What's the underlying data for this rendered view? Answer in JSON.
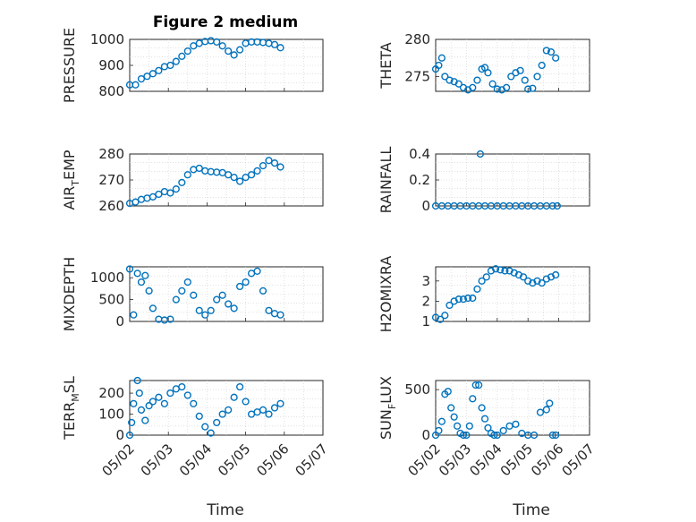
{
  "figure": {
    "title": "Figure 2 medium",
    "xlabel": "Time",
    "marker_color": "#0072bd"
  },
  "chart_data": [
    {
      "type": "scatter",
      "ylabel": "PRESSURE",
      "x_ticks": [
        "05/02",
        "05/03",
        "05/04",
        "05/05",
        "05/06",
        "05/07"
      ],
      "xlim": [
        0,
        5
      ],
      "ylim": [
        800,
        1000
      ],
      "yticks": [
        800,
        900,
        1000
      ],
      "grid": true,
      "series": [
        {
          "x": [
            0,
            0.15,
            0.3,
            0.45,
            0.6,
            0.75,
            0.9,
            1.05,
            1.2,
            1.35,
            1.5,
            1.65,
            1.8,
            1.95,
            2.1,
            2.25,
            2.4,
            2.55,
            2.7,
            2.85,
            3.0,
            3.15,
            3.3,
            3.45,
            3.6,
            3.75,
            3.9
          ],
          "y": [
            825,
            825,
            848,
            858,
            868,
            880,
            895,
            900,
            915,
            935,
            955,
            975,
            985,
            992,
            995,
            990,
            975,
            955,
            940,
            960,
            985,
            990,
            990,
            988,
            985,
            980,
            968
          ]
        }
      ]
    },
    {
      "type": "scatter",
      "ylabel": "THETA",
      "x_ticks": [
        "05/02",
        "05/03",
        "05/04",
        "05/05",
        "05/06",
        "05/07"
      ],
      "xlim": [
        0,
        5
      ],
      "ylim": [
        273,
        280
      ],
      "yticks": [
        275,
        280
      ],
      "grid": true,
      "series": [
        {
          "x": [
            0,
            0.1,
            0.2,
            0.3,
            0.45,
            0.6,
            0.75,
            0.9,
            1.05,
            1.2,
            1.35,
            1.5,
            1.6,
            1.7,
            1.85,
            2.0,
            2.15,
            2.3,
            2.45,
            2.6,
            2.75,
            2.9,
            3.0,
            3.15,
            3.3,
            3.45,
            3.6,
            3.75,
            3.9
          ],
          "y": [
            276,
            276.5,
            277.5,
            275,
            274.5,
            274.3,
            274,
            273.5,
            273.2,
            273.5,
            274.5,
            276,
            276.2,
            275.5,
            274,
            273.3,
            273.2,
            273.5,
            275,
            275.5,
            275.8,
            274.5,
            273.3,
            273.4,
            275,
            276.5,
            278.5,
            278.3,
            277.5
          ]
        }
      ]
    },
    {
      "type": "scatter",
      "ylabel": "AIR_TEMP",
      "x_ticks": [
        "05/02",
        "05/03",
        "05/04",
        "05/05",
        "05/06",
        "05/07"
      ],
      "xlim": [
        0,
        5
      ],
      "ylim": [
        260,
        280
      ],
      "yticks": [
        260,
        270,
        280
      ],
      "grid": true,
      "series": [
        {
          "x": [
            0,
            0.15,
            0.3,
            0.45,
            0.6,
            0.75,
            0.9,
            1.05,
            1.2,
            1.35,
            1.5,
            1.65,
            1.8,
            1.95,
            2.1,
            2.25,
            2.4,
            2.55,
            2.7,
            2.85,
            3.0,
            3.15,
            3.3,
            3.45,
            3.6,
            3.75,
            3.9
          ],
          "y": [
            261,
            261.5,
            262.5,
            263,
            263.5,
            264.5,
            265.5,
            265,
            266.5,
            269,
            272,
            274,
            274.5,
            273.5,
            273.2,
            273,
            272.8,
            272,
            271,
            269.5,
            271,
            272,
            273.5,
            275.5,
            277.5,
            276.5,
            275
          ]
        }
      ]
    },
    {
      "type": "scatter",
      "ylabel": "RAINFALL",
      "x_ticks": [
        "05/02",
        "05/03",
        "05/04",
        "05/05",
        "05/06",
        "05/07"
      ],
      "xlim": [
        0,
        5
      ],
      "ylim": [
        0,
        0.4
      ],
      "yticks": [
        0,
        0.2,
        0.4
      ],
      "grid": true,
      "series": [
        {
          "x": [
            0,
            0.2,
            0.4,
            0.6,
            0.8,
            1.0,
            1.2,
            1.4,
            1.6,
            1.8,
            2.0,
            2.2,
            2.4,
            2.6,
            2.8,
            3.0,
            3.2,
            3.4,
            3.6,
            3.8,
            3.95,
            1.45
          ],
          "y": [
            0,
            0,
            0,
            0,
            0,
            0,
            0,
            0,
            0,
            0,
            0,
            0,
            0,
            0,
            0,
            0,
            0,
            0,
            0,
            0,
            0,
            0.4
          ]
        }
      ]
    },
    {
      "type": "scatter",
      "ylabel": "MIXDEPTH",
      "x_ticks": [
        "05/02",
        "05/03",
        "05/04",
        "05/05",
        "05/06",
        "05/07"
      ],
      "xlim": [
        0,
        5
      ],
      "ylim": [
        0,
        1250
      ],
      "yticks": [
        0,
        500,
        1000
      ],
      "grid": true,
      "series": [
        {
          "x": [
            0,
            0.1,
            0.2,
            0.3,
            0.4,
            0.5,
            0.6,
            0.75,
            0.9,
            1.05,
            1.2,
            1.35,
            1.5,
            1.65,
            1.8,
            1.95,
            2.1,
            2.25,
            2.4,
            2.55,
            2.7,
            2.85,
            3.0,
            3.15,
            3.3,
            3.45,
            3.6,
            3.75,
            3.9
          ],
          "y": [
            1200,
            150,
            1100,
            900,
            1050,
            700,
            300,
            50,
            30,
            50,
            500,
            700,
            900,
            600,
            250,
            150,
            250,
            500,
            600,
            400,
            300,
            800,
            900,
            1100,
            1150,
            700,
            250,
            180,
            150
          ]
        }
      ]
    },
    {
      "type": "scatter",
      "ylabel": "H2OMIXRA",
      "x_ticks": [
        "05/02",
        "05/03",
        "05/04",
        "05/05",
        "05/06",
        "05/07"
      ],
      "xlim": [
        0,
        5
      ],
      "ylim": [
        1,
        3.7
      ],
      "yticks": [
        1,
        2,
        3
      ],
      "grid": true,
      "series": [
        {
          "x": [
            0,
            0.15,
            0.3,
            0.45,
            0.6,
            0.75,
            0.9,
            1.05,
            1.2,
            1.35,
            1.5,
            1.65,
            1.8,
            1.95,
            2.1,
            2.25,
            2.4,
            2.55,
            2.7,
            2.85,
            3.0,
            3.15,
            3.3,
            3.45,
            3.6,
            3.75,
            3.9
          ],
          "y": [
            1.2,
            1.1,
            1.3,
            1.8,
            2.0,
            2.1,
            2.1,
            2.15,
            2.15,
            2.6,
            3.0,
            3.2,
            3.5,
            3.6,
            3.55,
            3.5,
            3.5,
            3.4,
            3.3,
            3.2,
            3.0,
            2.9,
            3.0,
            2.9,
            3.1,
            3.2,
            3.3
          ]
        }
      ]
    },
    {
      "type": "scatter",
      "ylabel": "TERR_MSL",
      "x_ticks": [
        "05/02",
        "05/03",
        "05/04",
        "05/05",
        "05/06",
        "05/07"
      ],
      "xlim": [
        0,
        5
      ],
      "ylim": [
        0,
        260
      ],
      "yticks": [
        0,
        100,
        200
      ],
      "grid": true,
      "series": [
        {
          "x": [
            0,
            0.05,
            0.1,
            0.2,
            0.25,
            0.3,
            0.4,
            0.5,
            0.6,
            0.75,
            0.9,
            1.05,
            1.2,
            1.35,
            1.5,
            1.65,
            1.8,
            1.95,
            2.1,
            2.25,
            2.4,
            2.55,
            2.7,
            2.85,
            3.0,
            3.15,
            3.3,
            3.45,
            3.6,
            3.75,
            3.9
          ],
          "y": [
            0,
            60,
            150,
            260,
            200,
            120,
            70,
            140,
            160,
            180,
            150,
            200,
            220,
            230,
            190,
            150,
            90,
            40,
            10,
            60,
            100,
            120,
            180,
            230,
            160,
            100,
            110,
            120,
            100,
            130,
            150
          ]
        }
      ]
    },
    {
      "type": "scatter",
      "ylabel": "SUN_FLUX",
      "x_ticks": [
        "05/02",
        "05/03",
        "05/04",
        "05/05",
        "05/06",
        "05/07"
      ],
      "xlim": [
        0,
        5
      ],
      "ylim": [
        0,
        600
      ],
      "yticks": [
        0,
        500
      ],
      "grid": true,
      "series": [
        {
          "x": [
            0,
            0.1,
            0.2,
            0.3,
            0.4,
            0.5,
            0.6,
            0.7,
            0.8,
            0.9,
            1.0,
            1.1,
            1.2,
            1.3,
            1.4,
            1.5,
            1.6,
            1.7,
            1.8,
            1.9,
            2.0,
            2.2,
            2.4,
            2.6,
            2.8,
            3.0,
            3.2,
            3.4,
            3.6,
            3.7,
            3.8,
            3.9
          ],
          "y": [
            0,
            50,
            150,
            450,
            480,
            300,
            200,
            100,
            20,
            0,
            0,
            100,
            400,
            550,
            550,
            300,
            180,
            80,
            20,
            0,
            0,
            50,
            100,
            120,
            20,
            0,
            0,
            250,
            280,
            350,
            0,
            0
          ]
        }
      ]
    }
  ]
}
